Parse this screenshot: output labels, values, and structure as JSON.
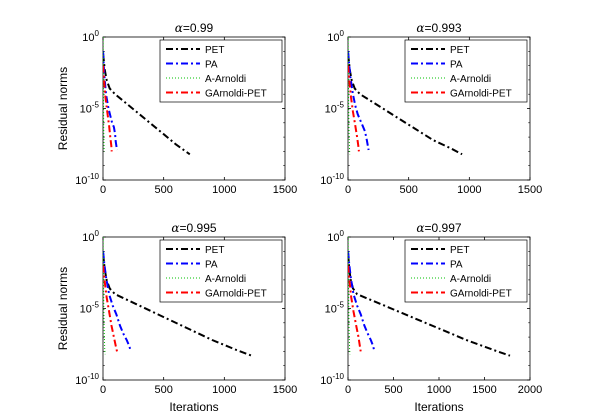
{
  "chart_data": [
    {
      "type": "line",
      "title": "α=0.99",
      "title_symbol": "α",
      "title_value": "=0.99",
      "xlabel": "",
      "ylabel": "Residual norms",
      "xlim": [
        0,
        1500
      ],
      "xticks": [
        0,
        500,
        1000,
        1500
      ],
      "ylim_exp": [
        -10,
        0
      ],
      "yticks_exp": [
        0,
        -5,
        -10
      ],
      "legend": [
        "PET",
        "PA",
        "A-Arnoldi",
        "GArnoldi-PET"
      ],
      "series": [
        {
          "name": "PET",
          "color": "#000000",
          "dash": "7,3,2,3",
          "x": [
            1,
            15,
            30,
            55,
            100,
            200,
            300,
            400,
            500,
            600,
            715
          ],
          "y": [
            -1.2,
            -2.3,
            -3.0,
            -3.6,
            -4.0,
            -4.7,
            -5.4,
            -6.1,
            -6.8,
            -7.5,
            -8.2
          ]
        },
        {
          "name": "PA",
          "color": "#0000ff",
          "dash": "7,3,2,3",
          "x": [
            1,
            5,
            12,
            25,
            45,
            60,
            75,
            90,
            100,
            105,
            115
          ],
          "y": [
            -1.0,
            -1.8,
            -2.8,
            -4.0,
            -5.0,
            -5.5,
            -6.0,
            -6.3,
            -6.8,
            -7.3,
            -7.9
          ]
        },
        {
          "name": "A-Arnoldi",
          "color": "#00c000",
          "dash": "1,2",
          "x": [
            1,
            2,
            3,
            4,
            5,
            6,
            8,
            10
          ],
          "y": [
            0.0,
            -1.0,
            -2.5,
            -4.0,
            -5.5,
            -6.5,
            -7.5,
            -8.0
          ]
        },
        {
          "name": "GArnoldi-PET",
          "color": "#ff0000",
          "dash": "7,3,2,3",
          "x": [
            1,
            8,
            20,
            35,
            50,
            60,
            68,
            72
          ],
          "y": [
            -2.0,
            -3.0,
            -4.2,
            -5.2,
            -6.2,
            -7.0,
            -7.6,
            -8.0
          ]
        }
      ]
    },
    {
      "type": "line",
      "title": "α=0.993",
      "title_symbol": "α",
      "title_value": "=0.993",
      "xlabel": "",
      "ylabel": "",
      "xlim": [
        0,
        1500
      ],
      "xticks": [
        0,
        500,
        1000,
        1500
      ],
      "ylim_exp": [
        -10,
        0
      ],
      "yticks_exp": [
        0,
        -5,
        -10
      ],
      "legend": [
        "PET",
        "PA",
        "A-Arnoldi",
        "GArnoldi-PET"
      ],
      "series": [
        {
          "name": "PET",
          "color": "#000000",
          "dash": "7,3,2,3",
          "x": [
            1,
            15,
            30,
            55,
            100,
            250,
            400,
            550,
            700,
            850,
            940
          ],
          "y": [
            -1.2,
            -2.3,
            -3.0,
            -3.6,
            -4.0,
            -4.8,
            -5.6,
            -6.4,
            -7.2,
            -7.8,
            -8.2
          ]
        },
        {
          "name": "PA",
          "color": "#0000ff",
          "dash": "7,3,2,3",
          "x": [
            1,
            8,
            20,
            40,
            60,
            80,
            100,
            120,
            140,
            155,
            170
          ],
          "y": [
            -1.0,
            -1.8,
            -2.8,
            -4.0,
            -4.8,
            -5.4,
            -5.8,
            -6.2,
            -6.6,
            -7.2,
            -7.9
          ]
        },
        {
          "name": "A-Arnoldi",
          "color": "#00c000",
          "dash": "1,2",
          "x": [
            1,
            2,
            3,
            5,
            8,
            12,
            15
          ],
          "y": [
            0.0,
            -1.0,
            -2.5,
            -4.5,
            -6.5,
            -7.8,
            -8.2
          ]
        },
        {
          "name": "GArnoldi-PET",
          "color": "#ff0000",
          "dash": "7,3,2,3",
          "x": [
            1,
            10,
            25,
            40,
            60,
            75,
            85,
            90
          ],
          "y": [
            -2.0,
            -3.0,
            -4.2,
            -5.2,
            -6.2,
            -7.0,
            -7.6,
            -8.0
          ]
        }
      ]
    },
    {
      "type": "line",
      "title": "α=0.995",
      "title_symbol": "α",
      "title_value": "=0.995",
      "xlabel": "Iterations",
      "ylabel": "Residual norms",
      "xlim": [
        0,
        1500
      ],
      "xticks": [
        0,
        500,
        1000,
        1500
      ],
      "ylim_exp": [
        -10,
        0
      ],
      "yticks_exp": [
        0,
        -5,
        -10
      ],
      "legend": [
        "PET",
        "PA",
        "A-Arnoldi",
        "GArnoldi-PET"
      ],
      "series": [
        {
          "name": "PET",
          "color": "#000000",
          "dash": "7,3,2,3",
          "x": [
            1,
            15,
            30,
            55,
            100,
            300,
            500,
            700,
            900,
            1100,
            1225
          ],
          "y": [
            -1.2,
            -2.3,
            -3.0,
            -3.6,
            -4.0,
            -4.8,
            -5.6,
            -6.4,
            -7.2,
            -7.9,
            -8.3
          ]
        },
        {
          "name": "PA",
          "color": "#0000ff",
          "dash": "7,3,2,3",
          "x": [
            1,
            10,
            25,
            50,
            80,
            110,
            140,
            170,
            195,
            215,
            230
          ],
          "y": [
            -1.0,
            -1.8,
            -2.8,
            -4.0,
            -4.8,
            -5.4,
            -6.2,
            -6.8,
            -7.2,
            -7.6,
            -8.0
          ]
        },
        {
          "name": "A-Arnoldi",
          "color": "#00c000",
          "dash": "1,2",
          "x": [
            1,
            2,
            4,
            6,
            10,
            14,
            18
          ],
          "y": [
            0.0,
            -1.0,
            -2.5,
            -4.5,
            -6.5,
            -7.8,
            -8.2
          ]
        },
        {
          "name": "GArnoldi-PET",
          "color": "#ff0000",
          "dash": "7,3,2,3",
          "x": [
            1,
            12,
            30,
            50,
            70,
            90,
            105,
            115
          ],
          "y": [
            -2.0,
            -3.0,
            -4.2,
            -5.2,
            -6.2,
            -7.0,
            -7.6,
            -8.0
          ]
        }
      ]
    },
    {
      "type": "line",
      "title": "α=0.997",
      "title_symbol": "α",
      "title_value": "=0.997",
      "xlabel": "Iterations",
      "ylabel": "",
      "xlim": [
        0,
        2000
      ],
      "xticks": [
        0,
        500,
        1000,
        1500,
        2000
      ],
      "ylim_exp": [
        -10,
        0
      ],
      "yticks_exp": [
        0,
        -5,
        -10
      ],
      "legend": [
        "PET",
        "PA",
        "A-Arnoldi",
        "GArnoldi-PET"
      ],
      "series": [
        {
          "name": "PET",
          "color": "#000000",
          "dash": "7,3,2,3",
          "x": [
            1,
            15,
            30,
            55,
            100,
            400,
            700,
            1000,
            1300,
            1600,
            1780
          ],
          "y": [
            -1.2,
            -2.3,
            -3.0,
            -3.6,
            -4.0,
            -4.8,
            -5.6,
            -6.4,
            -7.2,
            -7.9,
            -8.3
          ]
        },
        {
          "name": "PA",
          "color": "#0000ff",
          "dash": "7,3,2,3",
          "x": [
            1,
            12,
            30,
            60,
            100,
            140,
            180,
            220,
            250,
            275,
            290
          ],
          "y": [
            -1.0,
            -1.8,
            -2.8,
            -4.0,
            -4.8,
            -5.4,
            -6.2,
            -6.8,
            -7.2,
            -7.6,
            -8.0
          ]
        },
        {
          "name": "A-Arnoldi",
          "color": "#00c000",
          "dash": "1,2",
          "x": [
            1,
            2,
            4,
            8,
            12,
            18,
            22
          ],
          "y": [
            0.0,
            -1.0,
            -2.5,
            -4.5,
            -6.5,
            -7.8,
            -8.2
          ]
        },
        {
          "name": "GArnoldi-PET",
          "color": "#ff0000",
          "dash": "7,3,2,3",
          "x": [
            1,
            15,
            35,
            60,
            90,
            115,
            130,
            140
          ],
          "y": [
            -2.0,
            -3.0,
            -4.2,
            -5.2,
            -6.2,
            -7.0,
            -7.6,
            -8.0
          ]
        }
      ]
    }
  ]
}
